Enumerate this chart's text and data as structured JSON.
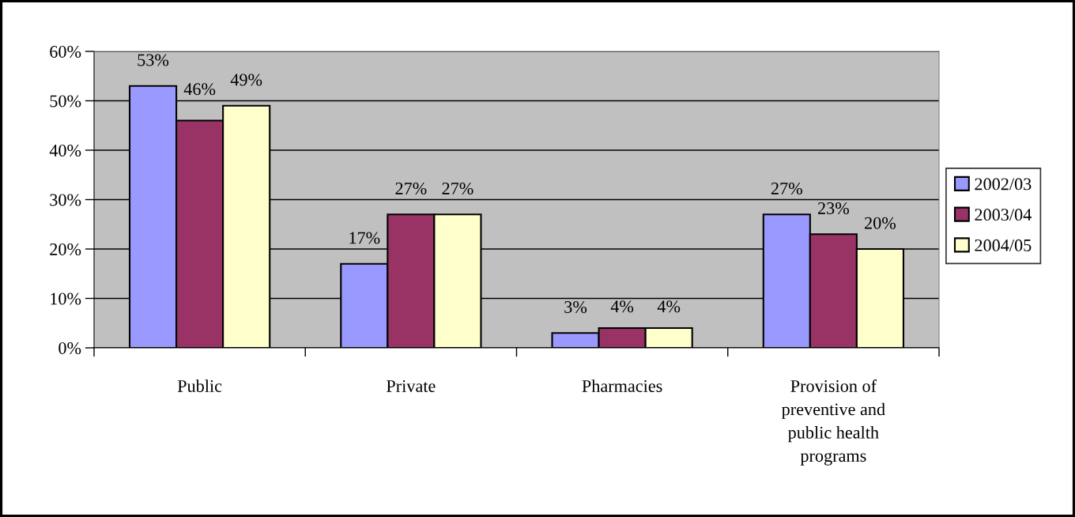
{
  "chart_data": {
    "type": "bar",
    "categories": [
      "Public",
      "Private",
      "Pharmacies",
      "Provision of\npreventive and\npublic health\nprograms"
    ],
    "series": [
      {
        "name": "2002/03",
        "color": "#9999ff",
        "values": [
          53,
          17,
          3,
          27
        ],
        "value_labels": [
          "53%",
          "17%",
          "3%",
          "27%"
        ]
      },
      {
        "name": "2003/04",
        "color": "#993366",
        "values": [
          46,
          27,
          4,
          23
        ],
        "value_labels": [
          "46%",
          "27%",
          "4%",
          "23%"
        ]
      },
      {
        "name": "2004/05",
        "color": "#ffffcc",
        "values": [
          49,
          27,
          4,
          20
        ],
        "value_labels": [
          "49%",
          "27%",
          "4%",
          "20%"
        ]
      }
    ],
    "ylim": [
      0,
      60
    ],
    "yticks": [
      {
        "value": 0,
        "label": "0%"
      },
      {
        "value": 10,
        "label": "10%"
      },
      {
        "value": 20,
        "label": "20%"
      },
      {
        "value": 30,
        "label": "30%"
      },
      {
        "value": 40,
        "label": "40%"
      },
      {
        "value": 50,
        "label": "50%"
      },
      {
        "value": 60,
        "label": "60%"
      }
    ],
    "grid": "y",
    "legend": "right"
  }
}
